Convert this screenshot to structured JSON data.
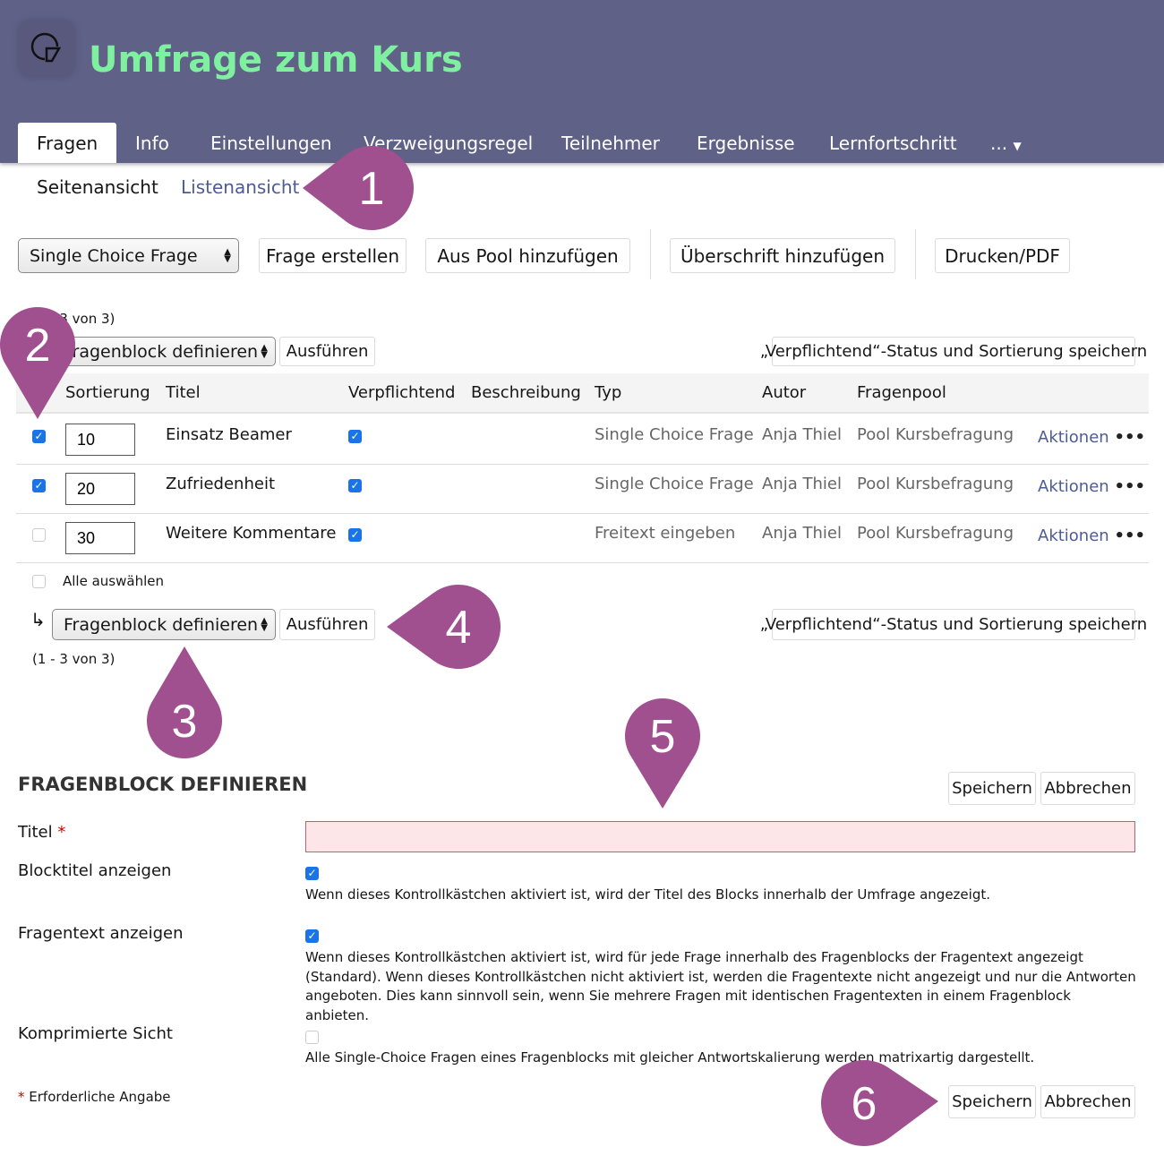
{
  "header": {
    "title": "Umfrage zum Kurs",
    "logo_icon": "survey-logo-icon"
  },
  "tabs": [
    "Fragen",
    "Info",
    "Einstellungen",
    "Verzweigungsregel",
    "Teilnehmer",
    "Ergebnisse",
    "Lernfortschritt",
    "..."
  ],
  "subtabs": [
    "Seitenansicht",
    "Listenansicht"
  ],
  "toolbar": {
    "type_select": "Single Choice Frage",
    "create": "Frage erstellen",
    "pool": "Aus Pool hinzufügen",
    "heading": "Überschrift hinzufügen",
    "print": "Drucken/PDF"
  },
  "table": {
    "count_top": "(1 - 3 von 3)",
    "count_bottom": "(1 - 3 von 3)",
    "action_select": "Fragenblock definieren",
    "execute": "Ausführen",
    "save_status": "„Verpflichtend“-Status und Sortierung speichern",
    "columns": [
      "Sortierung",
      "Titel",
      "Verpflichtend",
      "Beschreibung",
      "Typ",
      "Autor",
      "Fragenpool"
    ],
    "rows": [
      {
        "selected": true,
        "sort": "10",
        "title": "Einsatz Beamer",
        "mandatory": true,
        "type": "Single Choice Frage",
        "author": "Anja Thiel",
        "pool": "Pool Kursbefragung",
        "actions": "Aktionen"
      },
      {
        "selected": true,
        "sort": "20",
        "title": "Zufriedenheit",
        "mandatory": true,
        "type": "Single Choice Frage",
        "author": "Anja Thiel",
        "pool": "Pool Kursbefragung",
        "actions": "Aktionen"
      },
      {
        "selected": false,
        "sort": "30",
        "title": "Weitere Kommentare",
        "mandatory": true,
        "type": "Freitext eingeben",
        "author": "Anja Thiel",
        "pool": "Pool Kursbefragung",
        "actions": "Aktionen"
      }
    ],
    "select_all": "Alle auswählen",
    "arrow": "↳"
  },
  "form": {
    "heading": "FRAGENBLOCK DEFINIEREN",
    "save": "Speichern",
    "cancel": "Abbrechen",
    "title_label": "Titel",
    "required_mark": "*",
    "title_value": "",
    "show_block_title": {
      "label": "Blocktitel anzeigen",
      "checked": true,
      "help": "Wenn dieses Kontrollkästchen aktiviert ist, wird der Titel des Blocks innerhalb der Umfrage angezeigt."
    },
    "show_question_text": {
      "label": "Fragentext anzeigen",
      "checked": true,
      "help": "Wenn dieses Kontrollkästchen aktiviert ist, wird für jede Frage innerhalb des Fragenblocks der Fragentext angezeigt (Standard). Wenn dieses Kontrollkästchen nicht aktiviert ist, werden die Fragentexte nicht angezeigt und nur die Antworten angeboten. Dies kann sinnvoll sein, wenn Sie mehrere Fragen mit identischen Fragentexten in einem Fragenblock anbieten."
    },
    "compressed": {
      "label": "Komprimierte Sicht",
      "checked": false,
      "help": "Alle Single-Choice Fragen eines Fragenblocks mit gleicher Antwortskalierung werden matrixartig dargestellt."
    },
    "required_note": "Erforderliche Angabe"
  },
  "callouts": [
    "1",
    "2",
    "3",
    "4",
    "5",
    "6"
  ],
  "colors": {
    "header": "#5f6187",
    "title": "#7ef0a0",
    "callout": "#a0508f",
    "link": "#4d5b96",
    "error_field": "#fde6e8"
  }
}
